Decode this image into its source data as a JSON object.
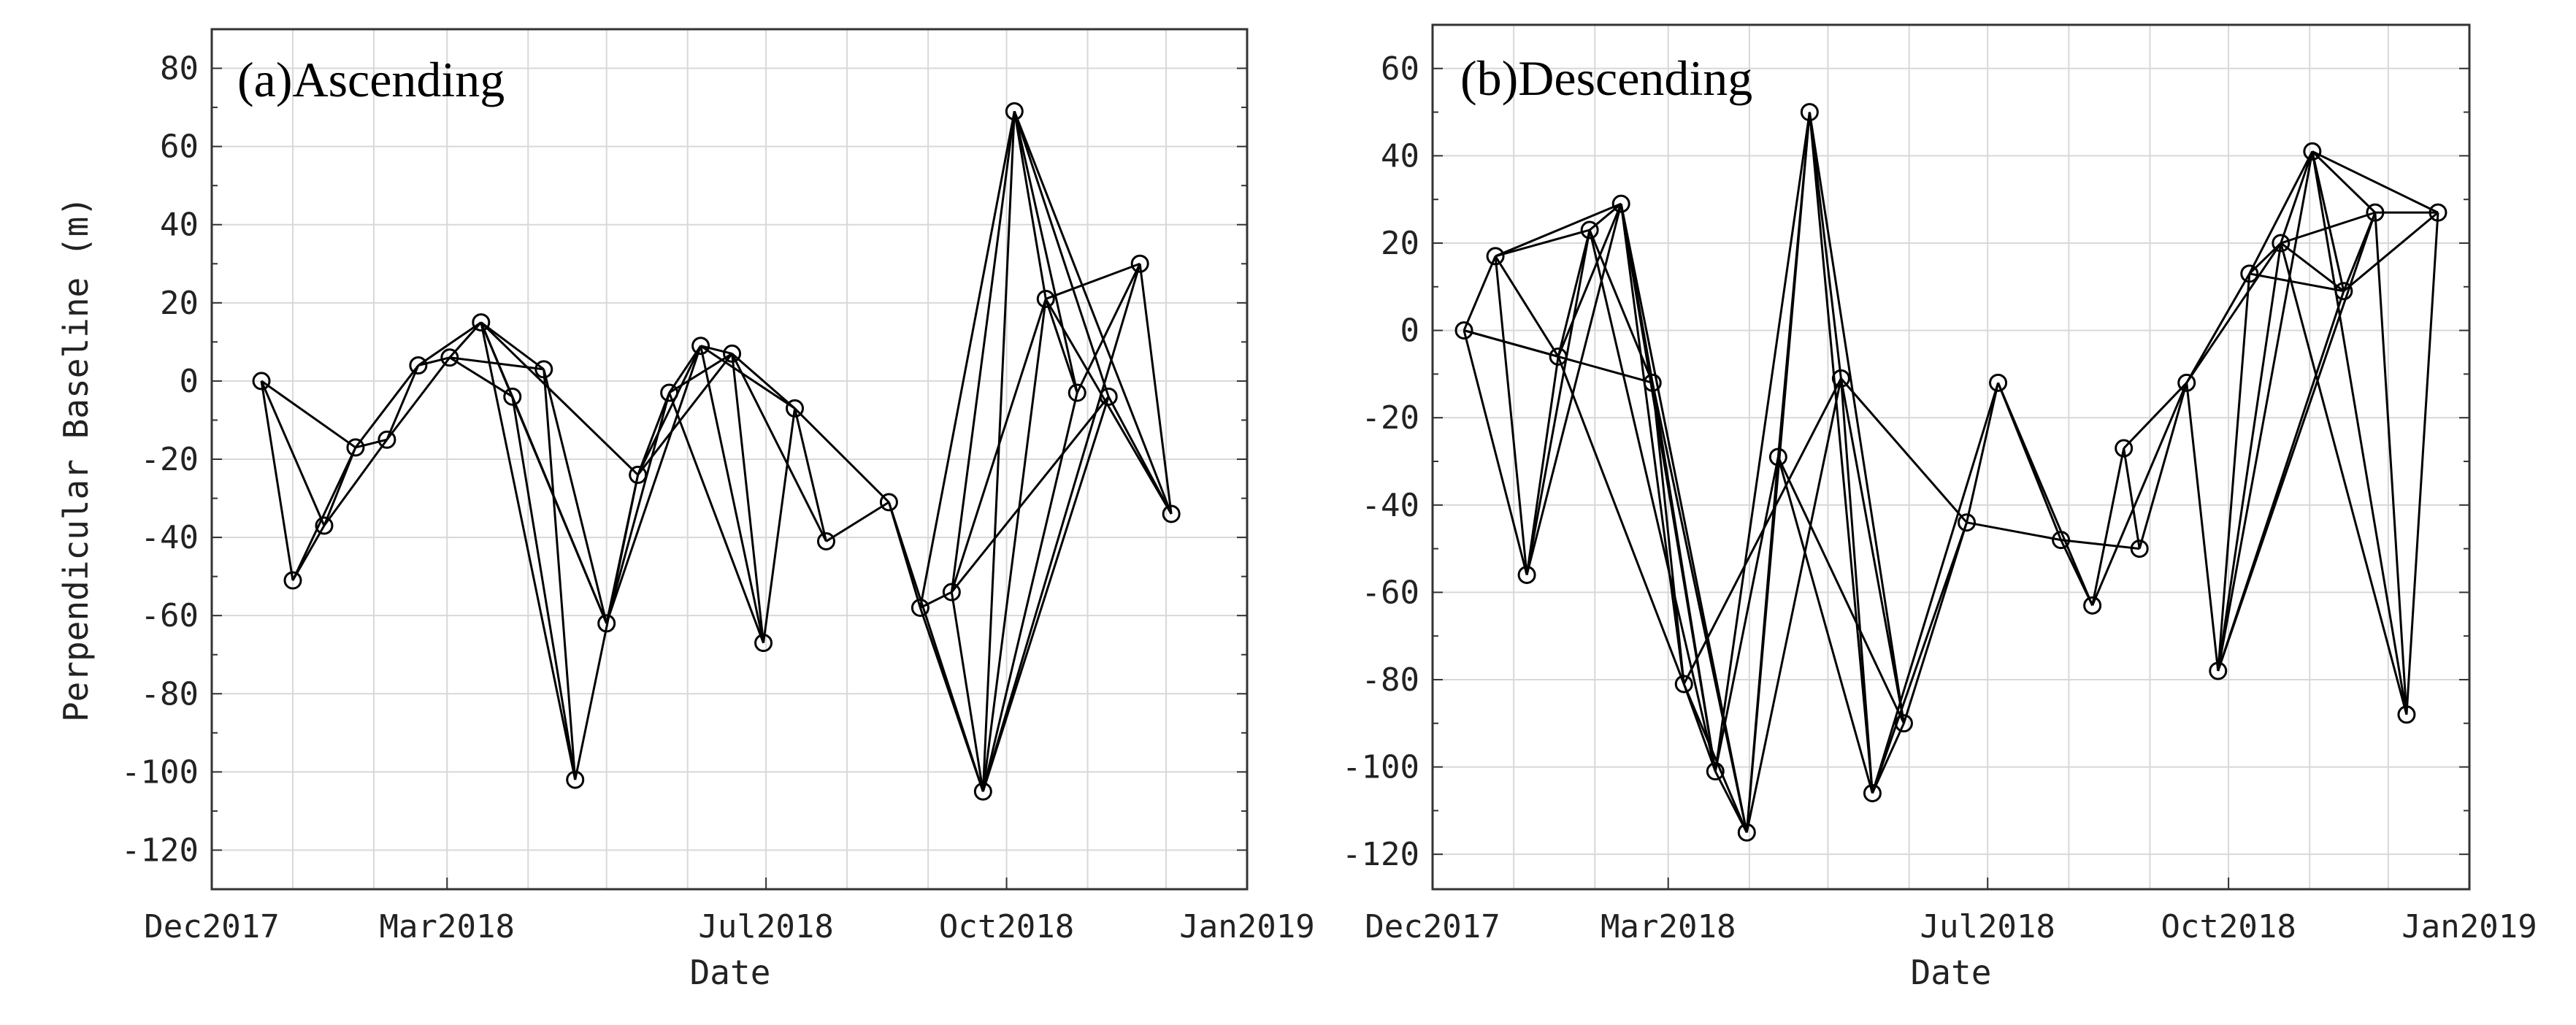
{
  "chart_data": [
    {
      "type": "line",
      "panel": "a",
      "title": "(a)Ascending",
      "xlabel": "Date",
      "ylabel": "Perpendicular Baseline (m)",
      "xlim": [
        "2017-12-01",
        "2019-01-01"
      ],
      "ylim": [
        -130,
        90
      ],
      "xticks": [
        {
          "date": "2017-12-01",
          "label": "Dec2017"
        },
        {
          "date": "2018-03-01",
          "label": "Mar2018"
        },
        {
          "date": "2018-07-01",
          "label": "Jul2018"
        },
        {
          "date": "2018-10-01",
          "label": "Oct2018"
        },
        {
          "date": "2019-01-01",
          "label": "Jan2019"
        }
      ],
      "yticks": [
        80,
        60,
        40,
        20,
        0,
        -20,
        -40,
        -60,
        -80,
        -100,
        -120
      ],
      "points": [
        {
          "date": "2017-12-20",
          "baseline": 0
        },
        {
          "date": "2018-01-01",
          "baseline": -51
        },
        {
          "date": "2018-01-13",
          "baseline": -37
        },
        {
          "date": "2018-01-25",
          "baseline": -17
        },
        {
          "date": "2018-02-06",
          "baseline": -15
        },
        {
          "date": "2018-02-18",
          "baseline": 4
        },
        {
          "date": "2018-03-02",
          "baseline": 6
        },
        {
          "date": "2018-03-14",
          "baseline": 15
        },
        {
          "date": "2018-03-26",
          "baseline": -4
        },
        {
          "date": "2018-04-07",
          "baseline": 3
        },
        {
          "date": "2018-04-19",
          "baseline": -102
        },
        {
          "date": "2018-05-01",
          "baseline": -62
        },
        {
          "date": "2018-05-13",
          "baseline": -24
        },
        {
          "date": "2018-05-25",
          "baseline": -3
        },
        {
          "date": "2018-06-06",
          "baseline": 9
        },
        {
          "date": "2018-06-18",
          "baseline": 7
        },
        {
          "date": "2018-06-30",
          "baseline": -67
        },
        {
          "date": "2018-07-12",
          "baseline": -7
        },
        {
          "date": "2018-07-24",
          "baseline": -41
        },
        {
          "date": "2018-08-17",
          "baseline": -31
        },
        {
          "date": "2018-08-29",
          "baseline": -58
        },
        {
          "date": "2018-09-10",
          "baseline": -54
        },
        {
          "date": "2018-09-22",
          "baseline": -105
        },
        {
          "date": "2018-10-04",
          "baseline": 69
        },
        {
          "date": "2018-10-16",
          "baseline": 21
        },
        {
          "date": "2018-10-28",
          "baseline": -3
        },
        {
          "date": "2018-11-09",
          "baseline": -4
        },
        {
          "date": "2018-11-21",
          "baseline": 30
        },
        {
          "date": "2018-12-03",
          "baseline": -34
        }
      ],
      "pairs": [
        [
          0,
          1
        ],
        [
          0,
          2
        ],
        [
          0,
          3
        ],
        [
          1,
          2
        ],
        [
          1,
          3
        ],
        [
          2,
          3
        ],
        [
          2,
          4
        ],
        [
          3,
          4
        ],
        [
          3,
          5
        ],
        [
          4,
          5
        ],
        [
          4,
          6
        ],
        [
          5,
          6
        ],
        [
          5,
          7
        ],
        [
          6,
          7
        ],
        [
          6,
          8
        ],
        [
          6,
          9
        ],
        [
          7,
          8
        ],
        [
          7,
          9
        ],
        [
          7,
          10
        ],
        [
          7,
          11
        ],
        [
          8,
          10
        ],
        [
          8,
          11
        ],
        [
          9,
          10
        ],
        [
          9,
          11
        ],
        [
          7,
          12
        ],
        [
          10,
          12
        ],
        [
          11,
          12
        ],
        [
          11,
          13
        ],
        [
          11,
          14
        ],
        [
          12,
          13
        ],
        [
          12,
          14
        ],
        [
          12,
          15
        ],
        [
          13,
          14
        ],
        [
          13,
          15
        ],
        [
          13,
          16
        ],
        [
          14,
          15
        ],
        [
          14,
          16
        ],
        [
          14,
          17
        ],
        [
          15,
          16
        ],
        [
          15,
          17
        ],
        [
          15,
          18
        ],
        [
          16,
          17
        ],
        [
          17,
          18
        ],
        [
          17,
          19
        ],
        [
          18,
          19
        ],
        [
          19,
          20
        ],
        [
          19,
          22
        ],
        [
          20,
          21
        ],
        [
          20,
          22
        ],
        [
          20,
          23
        ],
        [
          21,
          22
        ],
        [
          21,
          23
        ],
        [
          21,
          24
        ],
        [
          21,
          26
        ],
        [
          22,
          23
        ],
        [
          22,
          24
        ],
        [
          22,
          25
        ],
        [
          22,
          26
        ],
        [
          22,
          27
        ],
        [
          23,
          24
        ],
        [
          23,
          25
        ],
        [
          23,
          26
        ],
        [
          23,
          28
        ],
        [
          24,
          25
        ],
        [
          24,
          27
        ],
        [
          24,
          28
        ],
        [
          25,
          27
        ],
        [
          26,
          28
        ],
        [
          27,
          28
        ]
      ]
    },
    {
      "type": "line",
      "panel": "b",
      "title": "(b)Descending",
      "xlabel": "Date",
      "ylabel": "",
      "xlim": [
        "2017-12-01",
        "2019-01-01"
      ],
      "ylim": [
        -128,
        70
      ],
      "xticks": [
        {
          "date": "2017-12-01",
          "label": "Dec2017"
        },
        {
          "date": "2018-03-01",
          "label": "Mar2018"
        },
        {
          "date": "2018-07-01",
          "label": "Jul2018"
        },
        {
          "date": "2018-10-01",
          "label": "Oct2018"
        },
        {
          "date": "2019-01-01",
          "label": "Jan2019"
        }
      ],
      "yticks": [
        60,
        40,
        20,
        0,
        -20,
        -40,
        -60,
        -80,
        -100,
        -120
      ],
      "points": [
        {
          "date": "2017-12-13",
          "baseline": 0
        },
        {
          "date": "2017-12-25",
          "baseline": 17
        },
        {
          "date": "2018-01-06",
          "baseline": -56
        },
        {
          "date": "2018-01-18",
          "baseline": -6
        },
        {
          "date": "2018-01-30",
          "baseline": 23
        },
        {
          "date": "2018-02-11",
          "baseline": 29
        },
        {
          "date": "2018-02-23",
          "baseline": -12
        },
        {
          "date": "2018-03-07",
          "baseline": -81
        },
        {
          "date": "2018-03-19",
          "baseline": -101
        },
        {
          "date": "2018-03-31",
          "baseline": -115
        },
        {
          "date": "2018-04-12",
          "baseline": -29
        },
        {
          "date": "2018-04-24",
          "baseline": 50
        },
        {
          "date": "2018-05-06",
          "baseline": -11
        },
        {
          "date": "2018-05-18",
          "baseline": -106
        },
        {
          "date": "2018-05-30",
          "baseline": -90
        },
        {
          "date": "2018-06-23",
          "baseline": -44
        },
        {
          "date": "2018-07-05",
          "baseline": -12
        },
        {
          "date": "2018-07-29",
          "baseline": -48
        },
        {
          "date": "2018-08-10",
          "baseline": -63
        },
        {
          "date": "2018-08-22",
          "baseline": -27
        },
        {
          "date": "2018-08-28",
          "baseline": -50
        },
        {
          "date": "2018-09-15",
          "baseline": -12
        },
        {
          "date": "2018-09-27",
          "baseline": -78
        },
        {
          "date": "2018-10-09",
          "baseline": 13
        },
        {
          "date": "2018-10-21",
          "baseline": 20
        },
        {
          "date": "2018-11-02",
          "baseline": 41
        },
        {
          "date": "2018-11-14",
          "baseline": 9
        },
        {
          "date": "2018-11-26",
          "baseline": 27
        },
        {
          "date": "2018-12-08",
          "baseline": -88
        },
        {
          "date": "2018-12-20",
          "baseline": 27
        }
      ],
      "pairs": [
        [
          0,
          1
        ],
        [
          0,
          2
        ],
        [
          0,
          3
        ],
        [
          0,
          6
        ],
        [
          1,
          2
        ],
        [
          1,
          3
        ],
        [
          1,
          4
        ],
        [
          1,
          5
        ],
        [
          2,
          3
        ],
        [
          2,
          4
        ],
        [
          2,
          5
        ],
        [
          3,
          4
        ],
        [
          3,
          5
        ],
        [
          3,
          7
        ],
        [
          4,
          5
        ],
        [
          4,
          6
        ],
        [
          4,
          8
        ],
        [
          5,
          6
        ],
        [
          5,
          7
        ],
        [
          5,
          8
        ],
        [
          5,
          9
        ],
        [
          6,
          7
        ],
        [
          6,
          8
        ],
        [
          6,
          9
        ],
        [
          7,
          8
        ],
        [
          7,
          9
        ],
        [
          7,
          12
        ],
        [
          8,
          9
        ],
        [
          8,
          10
        ],
        [
          8,
          11
        ],
        [
          9,
          10
        ],
        [
          9,
          11
        ],
        [
          9,
          12
        ],
        [
          10,
          11
        ],
        [
          10,
          13
        ],
        [
          10,
          14
        ],
        [
          11,
          12
        ],
        [
          11,
          13
        ],
        [
          11,
          14
        ],
        [
          12,
          13
        ],
        [
          12,
          14
        ],
        [
          12,
          15
        ],
        [
          13,
          14
        ],
        [
          13,
          15
        ],
        [
          13,
          16
        ],
        [
          14,
          15
        ],
        [
          15,
          16
        ],
        [
          15,
          17
        ],
        [
          16,
          17
        ],
        [
          16,
          18
        ],
        [
          17,
          18
        ],
        [
          17,
          20
        ],
        [
          18,
          19
        ],
        [
          18,
          21
        ],
        [
          19,
          20
        ],
        [
          19,
          21
        ],
        [
          20,
          21
        ],
        [
          21,
          22
        ],
        [
          21,
          23
        ],
        [
          21,
          24
        ],
        [
          22,
          23
        ],
        [
          22,
          24
        ],
        [
          22,
          25
        ],
        [
          22,
          26
        ],
        [
          22,
          27
        ],
        [
          23,
          24
        ],
        [
          23,
          25
        ],
        [
          23,
          26
        ],
        [
          24,
          25
        ],
        [
          24,
          26
        ],
        [
          24,
          27
        ],
        [
          24,
          28
        ],
        [
          25,
          26
        ],
        [
          25,
          27
        ],
        [
          25,
          28
        ],
        [
          25,
          29
        ],
        [
          26,
          27
        ],
        [
          26,
          29
        ],
        [
          27,
          28
        ],
        [
          27,
          29
        ],
        [
          28,
          29
        ]
      ]
    }
  ]
}
